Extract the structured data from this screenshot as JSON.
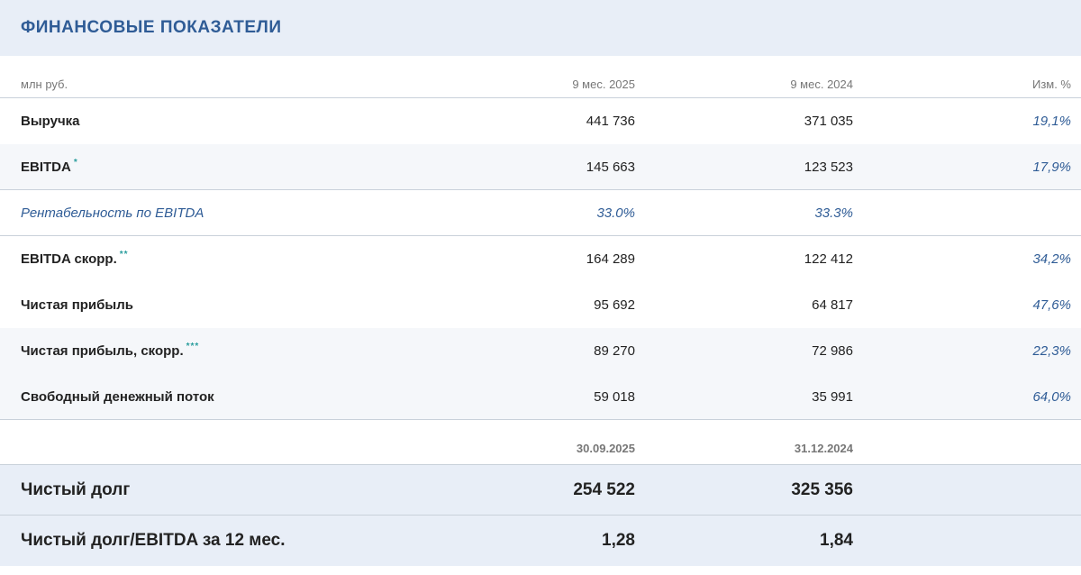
{
  "title": "ФИНАНСОВЫЕ ПОКАЗАТЕЛИ",
  "table": {
    "unit": "млн руб.",
    "col_a": "9 мес. 2025",
    "col_b": "9 мес. 2024",
    "col_c": "Изм. %",
    "rows": [
      {
        "label": "Выручка",
        "sup": "",
        "a": "441 736",
        "b": "371 035",
        "c": "19,1%"
      },
      {
        "label": "EBITDA",
        "sup": "*",
        "a": "145 663",
        "b": "123 523",
        "c": "17,9%"
      },
      {
        "label": "Рентабельность по EBITDA",
        "sup": "",
        "a": "33.0%",
        "b": "33.3%",
        "c": ""
      },
      {
        "label": "EBITDA скорр.",
        "sup": "**",
        "a": "164 289",
        "b": "122 412",
        "c": "34,2%"
      },
      {
        "label": "Чистая прибыль",
        "sup": "",
        "a": "95 692",
        "b": "64 817",
        "c": "47,6%"
      },
      {
        "label": "Чистая прибыль, скорр.",
        "sup": "***",
        "a": "89 270",
        "b": "72 986",
        "c": "22,3%"
      },
      {
        "label": "Свободный денежный поток",
        "sup": "",
        "a": "59 018",
        "b": "35 991",
        "c": "64,0%"
      }
    ]
  },
  "debt": {
    "date_a": "30.09.2025",
    "date_b": "31.12.2024",
    "rows": [
      {
        "label": "Чистый долг",
        "a": "254 522",
        "b": "325 356"
      },
      {
        "label": "Чистый долг/EBITDA за 12 мес.",
        "a": "1,28",
        "b": "1,84"
      }
    ]
  }
}
